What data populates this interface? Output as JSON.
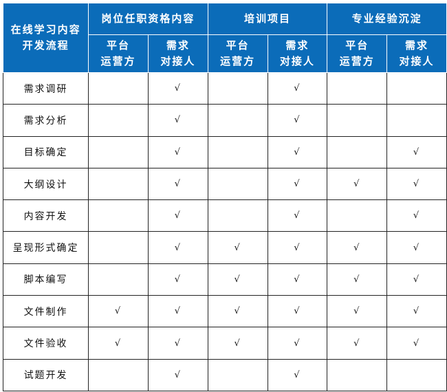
{
  "header": {
    "corner": [
      "在线学习内容",
      "开发流程"
    ],
    "groups": [
      "岗位任职资格内容",
      "培训项目",
      "专业经验沉淀"
    ],
    "sub": [
      [
        "平台",
        "运营方"
      ],
      [
        "需求",
        "对接人"
      ]
    ]
  },
  "check_symbol": "√",
  "rows": [
    {
      "label": "需求调研",
      "checks": [
        false,
        true,
        false,
        true,
        false,
        false
      ]
    },
    {
      "label": "需求分析",
      "checks": [
        false,
        true,
        false,
        true,
        false,
        false
      ]
    },
    {
      "label": "目标确定",
      "checks": [
        false,
        true,
        false,
        true,
        false,
        true
      ]
    },
    {
      "label": "大纲设计",
      "checks": [
        false,
        true,
        false,
        true,
        true,
        true
      ]
    },
    {
      "label": "内容开发",
      "checks": [
        false,
        true,
        false,
        true,
        false,
        true
      ]
    },
    {
      "label": "呈现形式确定",
      "checks": [
        false,
        true,
        true,
        true,
        true,
        true
      ]
    },
    {
      "label": "脚本编写",
      "checks": [
        false,
        true,
        true,
        true,
        true,
        true
      ]
    },
    {
      "label": "文件制作",
      "checks": [
        true,
        true,
        true,
        true,
        true,
        true
      ]
    },
    {
      "label": "文件验收",
      "checks": [
        true,
        true,
        true,
        true,
        true,
        true
      ]
    },
    {
      "label": "试题开发",
      "checks": [
        false,
        true,
        false,
        true,
        false,
        false
      ]
    }
  ]
}
